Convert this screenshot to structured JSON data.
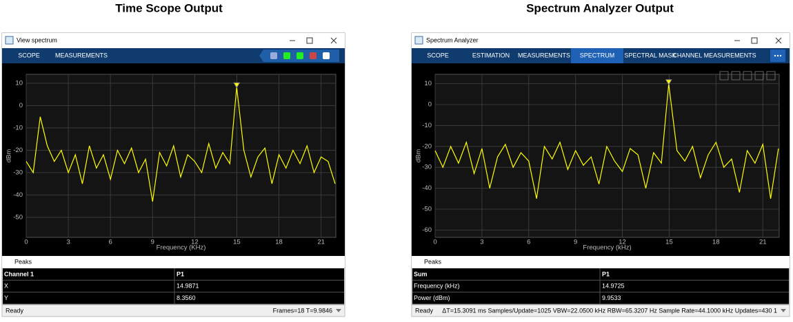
{
  "titles": [
    "Time Scope Output",
    "Spectrum Analyzer Output"
  ],
  "windows": [
    {
      "title": "View spectrum",
      "tabs": [
        "SCOPE",
        "MEASUREMENTS"
      ],
      "plot": {
        "type": "line",
        "xlabel": "Frequency (KHz)",
        "ylabel": "dBm",
        "color": "#ffff00",
        "xlim": [
          0,
          22.05
        ],
        "ylim": [
          -59,
          14
        ],
        "xticks": [
          0,
          3,
          6,
          9,
          12,
          15,
          18,
          21
        ],
        "yticks": [
          10,
          0,
          -10,
          -20,
          -30,
          -40,
          -50
        ],
        "x": [
          0,
          0.5,
          1,
          1.5,
          2,
          2.5,
          3,
          3.5,
          4,
          4.5,
          5,
          5.5,
          6,
          6.5,
          7,
          7.5,
          8,
          8.5,
          9,
          9.5,
          10,
          10.5,
          11,
          11.5,
          12,
          12.5,
          13,
          13.5,
          14,
          14.5,
          14.99,
          15.5,
          16,
          16.5,
          17,
          17.5,
          18,
          18.5,
          19,
          19.5,
          20,
          20.5,
          21,
          21.5,
          22
        ],
        "values": [
          -25,
          -30,
          -5,
          -18,
          -25,
          -20,
          -30,
          -22,
          -35,
          -18,
          -28,
          -22,
          -33,
          -20,
          -26,
          -19,
          -30,
          -24,
          -43,
          -21,
          -27,
          -18,
          -32,
          -22,
          -25,
          -30,
          -17,
          -28,
          -21,
          -26,
          8.356,
          -20,
          -32,
          -23,
          -19,
          -35,
          -22,
          -28,
          -20,
          -26,
          -18,
          -30,
          -23,
          -25,
          -35
        ]
      },
      "peaks": {
        "title": "Peaks",
        "header": [
          "Channel 1",
          "P1"
        ],
        "rows": [
          [
            "X",
            "14.9871"
          ],
          [
            "Y",
            "8.3560"
          ]
        ]
      },
      "status": [
        "Ready",
        "Frames=18  T=9.9846"
      ]
    },
    {
      "title": "Spectrum Analyzer",
      "tabs": [
        "SCOPE",
        "ESTIMATION",
        "MEASUREMENTS",
        "SPECTRUM",
        "SPECTRAL MASK",
        "CHANNEL MEASUREMENTS"
      ],
      "plot": {
        "type": "line",
        "xlabel": "Frequency (kHz)",
        "ylabel": "dBm",
        "color": "#ffff00",
        "xlim": [
          0,
          22.05
        ],
        "ylim": [
          -63.5,
          14.5
        ],
        "xticks": [
          0,
          3,
          6,
          9,
          12,
          15,
          18,
          21
        ],
        "yticks": [
          10,
          0,
          -10,
          -20,
          -30,
          -40,
          -50,
          -60
        ],
        "x": [
          0,
          0.5,
          1,
          1.5,
          2,
          2.5,
          3,
          3.5,
          4,
          4.5,
          5,
          5.5,
          6,
          6.5,
          7,
          7.5,
          8,
          8.5,
          9,
          9.5,
          10,
          10.5,
          11,
          11.5,
          12,
          12.5,
          13,
          13.5,
          14,
          14.5,
          14.97,
          15.5,
          16,
          16.5,
          17,
          17.5,
          18,
          18.5,
          19,
          19.5,
          20,
          20.5,
          21,
          21.5,
          22
        ],
        "values": [
          -22,
          -30,
          -20,
          -28,
          -18,
          -33,
          -21,
          -40,
          -25,
          -19,
          -30,
          -23,
          -27,
          -45,
          -20,
          -26,
          -18,
          -31,
          -22,
          -29,
          -25,
          -38,
          -20,
          -27,
          -32,
          -21,
          -24,
          -40,
          -23,
          -28,
          9.9533,
          -22,
          -27,
          -20,
          -35,
          -24,
          -18,
          -30,
          -26,
          -42,
          -22,
          -28,
          -19,
          -45,
          -21
        ]
      },
      "peaks": {
        "title": "Peaks",
        "header": [
          "Sum",
          "P1"
        ],
        "rows": [
          [
            "Frequency (kHz)",
            "14.9725"
          ],
          [
            "Power (dBm)",
            "9.9533"
          ]
        ]
      },
      "status": [
        "Ready",
        "ΔT=15.3091 ms  Samples/Update=1025  VBW=22.0500 kHz  RBW=65.3207 Hz  Sample Rate=44.1000 kHz  Updates=430  1"
      ]
    }
  ]
}
